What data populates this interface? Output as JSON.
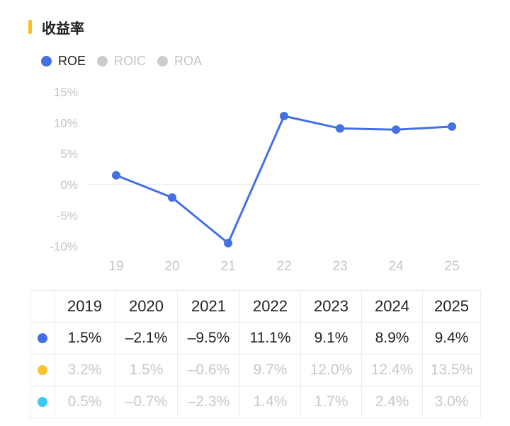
{
  "section": {
    "title": "收益率",
    "accent_color": "#f7c21c"
  },
  "legend": [
    {
      "label": "ROE",
      "color": "#4470e6",
      "active": true
    },
    {
      "label": "ROIC",
      "color": "#cccccc",
      "active": false
    },
    {
      "label": "ROA",
      "color": "#cccccc",
      "active": false
    }
  ],
  "chart_data": {
    "type": "line",
    "categories": [
      "19",
      "20",
      "21",
      "22",
      "23",
      "24",
      "25"
    ],
    "series": [
      {
        "name": "ROE",
        "values": [
          1.5,
          -2.1,
          -9.5,
          11.1,
          9.1,
          8.9,
          9.4
        ],
        "color": "#4470e6"
      }
    ],
    "y_ticks": [
      "15%",
      "10%",
      "5%",
      "0%",
      "-5%",
      "-10%"
    ],
    "ylim": [
      -10,
      15
    ],
    "zero_line": true,
    "grid": false
  },
  "table": {
    "headers": [
      "2019",
      "2020",
      "2021",
      "2022",
      "2023",
      "2024",
      "2025"
    ],
    "rows": [
      {
        "dot_color": "#4470e6",
        "text_color": "#222222",
        "values": [
          "1.5%",
          "–2.1%",
          "–9.5%",
          "11.1%",
          "9.1%",
          "8.9%",
          "9.4%"
        ]
      },
      {
        "dot_color": "#f7c533",
        "text_color": "#c8c8c8",
        "values": [
          "3.2%",
          "1.5%",
          "–0.6%",
          "9.7%",
          "12.0%",
          "12.4%",
          "13.5%"
        ]
      },
      {
        "dot_color": "#3ccbf0",
        "text_color": "#c8c8c8",
        "values": [
          "0.5%",
          "–0.7%",
          "–2.3%",
          "1.4%",
          "1.7%",
          "2.4%",
          "3.0%"
        ]
      }
    ]
  }
}
